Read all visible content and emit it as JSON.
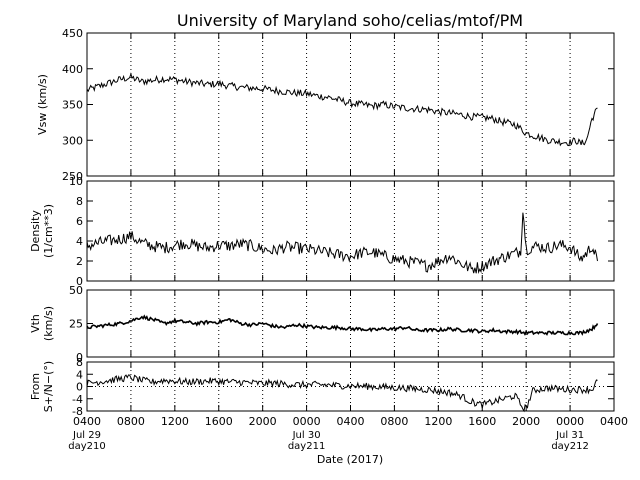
{
  "chart_data": {
    "type": "line",
    "title": "University of Maryland  soho/celias/mtof/PM",
    "xlabel": "Date (2017)",
    "x_tick_labels": [
      "0400",
      "0800",
      "1200",
      "1600",
      "2000",
      "0000",
      "0400",
      "0800",
      "1200",
      "1600",
      "2000",
      "0000",
      "0400"
    ],
    "x_tick_hours": [
      0,
      4,
      8,
      12,
      16,
      20,
      24,
      28,
      32,
      36,
      40,
      44,
      48
    ],
    "x_day_labels": [
      {
        "hour": 0,
        "month": "Jul 29",
        "day": "day210"
      },
      {
        "hour": 20,
        "month": "Jul 30",
        "day": "day211"
      },
      {
        "hour": 44,
        "month": "Jul 31",
        "day": "day212"
      }
    ],
    "xlim_hours_after_0400_day210": [
      0,
      48
    ],
    "grid": "dotted vertical lines at labelled ticks",
    "panels": [
      {
        "ylabel_lines": [
          "Vsw (km/s)"
        ],
        "ylim": [
          250,
          450
        ],
        "yticks": [
          250,
          300,
          350,
          400,
          450
        ],
        "series": [
          {
            "x": [
              0,
              1,
              2,
              3,
              4,
              5,
              6,
              7,
              8,
              9,
              10,
              11,
              12,
              13,
              14,
              15,
              16,
              17,
              18,
              19,
              20,
              21,
              22,
              23,
              24,
              25,
              26,
              27,
              28,
              29,
              30,
              31,
              32,
              33,
              34,
              35,
              36,
              37,
              38,
              39,
              40,
              41,
              42,
              43,
              44,
              44.5,
              45,
              45.5,
              46,
              46.5
            ],
            "y": [
              370,
              375,
              380,
              385,
              388,
              382,
              384,
              386,
              385,
              382,
              380,
              378,
              379,
              376,
              374,
              373,
              372,
              370,
              368,
              366,
              365,
              362,
              360,
              356,
              352,
              350,
              348,
              350,
              347,
              345,
              344,
              343,
              340,
              338,
              336,
              333,
              332,
              330,
              325,
              322,
              310,
              305,
              300,
              298,
              297,
              300,
              295,
              300,
              330,
              345
            ]
          }
        ]
      },
      {
        "ylabel_lines": [
          "Density",
          "(1/cm**3)"
        ],
        "ylim": [
          0,
          10
        ],
        "yticks": [
          0,
          2,
          4,
          6,
          8,
          10
        ],
        "series": [
          {
            "x": [
              0,
              1,
              2,
              3,
              4,
              5,
              6,
              7,
              8,
              9,
              10,
              11,
              12,
              13,
              14,
              15,
              16,
              17,
              18,
              19,
              20,
              21,
              22,
              23,
              24,
              25,
              26,
              27,
              28,
              29,
              30,
              31,
              32,
              33,
              34,
              35,
              36,
              37,
              38,
              39,
              39.5,
              39.7,
              40,
              41,
              42,
              43,
              44,
              45,
              45.5,
              46,
              46.5
            ],
            "y": [
              3.5,
              3.8,
              4,
              4.2,
              4.5,
              3.8,
              3.5,
              3.3,
              3.6,
              3.8,
              3.5,
              3.3,
              3.6,
              3.5,
              3.7,
              3.5,
              3.2,
              3,
              3.4,
              3.3,
              3.2,
              3,
              2.8,
              2.6,
              2.5,
              2.8,
              2.9,
              2.5,
              2.2,
              2,
              1.8,
              1.5,
              2,
              2.5,
              1.8,
              1.2,
              1.5,
              2,
              2.4,
              2.8,
              3,
              7.3,
              3.2,
              3.5,
              3.3,
              3.6,
              3.4,
              2.2,
              2.8,
              3.5,
              2
            ]
          }
        ]
      },
      {
        "ylabel_lines": [
          "Vth",
          "(km/s)"
        ],
        "ylim": [
          0,
          50
        ],
        "yticks": [
          0,
          25,
          50
        ],
        "series": [
          {
            "x": [
              0,
              1,
              2,
              3,
              4,
              5,
              6,
              7,
              8,
              9,
              10,
              11,
              12,
              13,
              14,
              15,
              16,
              17,
              18,
              19,
              20,
              21,
              22,
              23,
              24,
              25,
              26,
              27,
              28,
              29,
              30,
              31,
              32,
              33,
              34,
              35,
              36,
              37,
              38,
              39,
              40,
              41,
              42,
              43,
              44,
              45,
              46,
              46.5
            ],
            "y": [
              22,
              23,
              24,
              25,
              27,
              30,
              28,
              25,
              27,
              26,
              25,
              26,
              26,
              28,
              25,
              24,
              25,
              23,
              22,
              24,
              23,
              22,
              22,
              22,
              21,
              21,
              20,
              21,
              21,
              22,
              20,
              20,
              20,
              21,
              20,
              20,
              19,
              20,
              19,
              19,
              18,
              18,
              18,
              18,
              18,
              18,
              21,
              25
            ]
          }
        ]
      },
      {
        "ylabel_lines": [
          "From",
          "S+/N−(°)"
        ],
        "ylim": [
          -8,
          8
        ],
        "yticks": [
          -8,
          -4,
          0,
          4,
          8
        ],
        "series": [
          {
            "x": [
              0,
              1,
              2,
              3,
              4,
              5,
              6,
              7,
              8,
              9,
              10,
              11,
              12,
              13,
              14,
              15,
              16,
              17,
              18,
              19,
              20,
              21,
              22,
              23,
              24,
              25,
              26,
              27,
              28,
              29,
              30,
              31,
              32,
              33,
              34,
              35,
              36,
              37,
              38,
              39,
              39.7,
              40,
              40.6,
              41,
              42,
              43,
              44,
              45,
              46,
              46.5
            ],
            "y": [
              1,
              1.5,
              2,
              2.5,
              3,
              2,
              1.5,
              2,
              1.8,
              1.5,
              1.6,
              1.8,
              1.7,
              1.5,
              1.4,
              1.2,
              1,
              1.1,
              0.8,
              0.6,
              0.5,
              0.6,
              0.5,
              0.3,
              0.2,
              0.1,
              0,
              -0.2,
              -0.4,
              -0.5,
              -0.8,
              -1,
              -1.5,
              -2,
              -3,
              -5,
              -6,
              -5,
              -4,
              -3,
              -7,
              -7,
              -1.5,
              -1,
              -0.5,
              -0.8,
              -1,
              -1,
              -1,
              2
            ]
          }
        ]
      }
    ]
  }
}
